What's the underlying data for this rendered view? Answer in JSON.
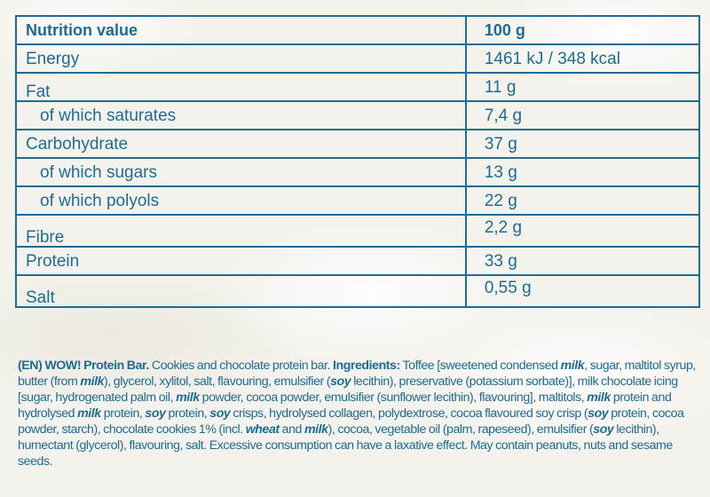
{
  "table": {
    "header": {
      "name": "Nutrition value",
      "value": "100 g"
    },
    "rows": [
      {
        "name": "Energy",
        "value": "1461 kJ / 348 kcal"
      },
      {
        "name": "Fat",
        "value": "11 g"
      },
      {
        "name": "of which saturates",
        "value": "7,4 g"
      },
      {
        "name": "Carbohydrate",
        "value": "37 g"
      },
      {
        "name": "of which sugars",
        "value": "13 g"
      },
      {
        "name": "of which polyols",
        "value": "22 g"
      },
      {
        "name": "Fibre",
        "value": "2,2 g"
      },
      {
        "name": "Protein",
        "value": "33 g"
      },
      {
        "name": "Salt",
        "value": "0,55 g"
      }
    ]
  },
  "ingredients": {
    "product": "(EN) WOW! Protein Bar.",
    "desc": " Cookies and chocolate protein bar. ",
    "label": "Ingredients:",
    "t1": " Toffee [sweetened condensed ",
    "a1": "milk",
    "t2": ", sugar, maltitol syrup, butter (from ",
    "a2": "milk",
    "t3": "), glycerol, xylitol, salt, flavouring, emulsifier (",
    "a3": "soy",
    "t4": " lecithin), preservative (potassium sorbate)], milk chocolate icing [sugar, hydrogenated palm oil, ",
    "a4": "milk",
    "t5": " powder, cocoa powder, emulsifier (sunflower lecithin), flavouring], maltitols, ",
    "a5": "milk",
    "t6": " protein and hydrolysed ",
    "a6": "milk",
    "t7": " protein, ",
    "a7": "soy",
    "t8": " protein, ",
    "a8": "soy",
    "t9": " crisps, hydrolysed collagen, polydextrose, cocoa flavoured soy crisp (",
    "a9": "soy",
    "t10": " protein, cocoa powder, starch), chocolate cookies 1% (incl. ",
    "a10": "wheat",
    "t11": " and ",
    "a11": "milk",
    "t12": "), cocoa, vegetable oil (palm, rapeseed), emulsifier (",
    "a12": "soy",
    "t13": " lecithin), humectant (glycerol), flavouring, salt. Excessive consumption can have a laxative effect. May contain peanuts, nuts and sesame seeds."
  }
}
